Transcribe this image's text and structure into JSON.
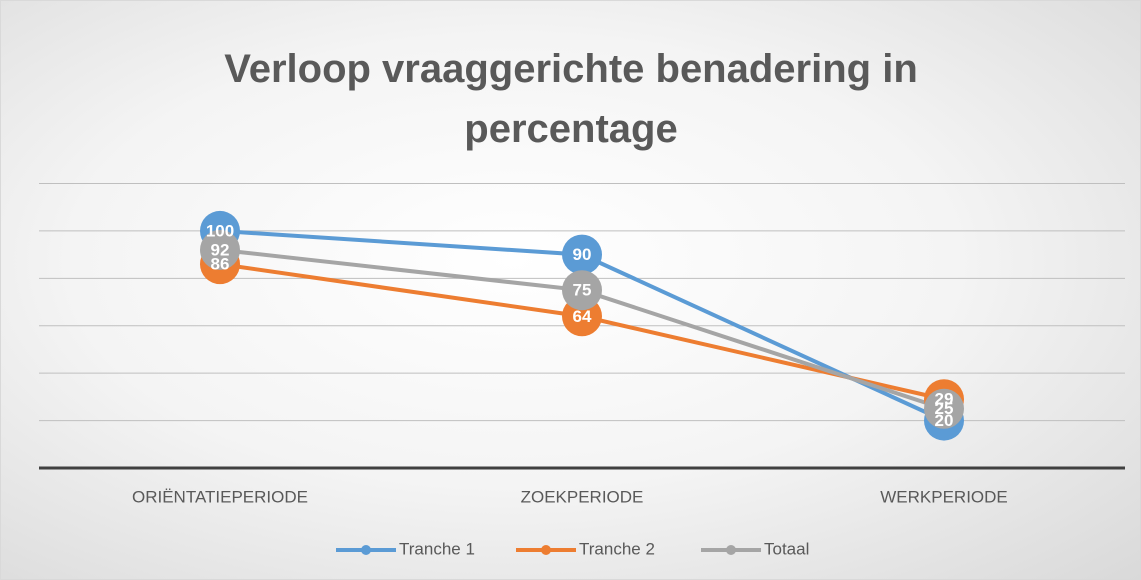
{
  "chart_data": {
    "type": "line",
    "title": "Verloop vraaggerichte benadering in percentage",
    "categories": [
      "ORIËNTATIEPERIODE",
      "ZOEKPERIODE",
      "WERKPERIODE"
    ],
    "series": [
      {
        "name": "Tranche 1",
        "color": "#5b9bd5",
        "values": [
          100,
          90,
          20
        ]
      },
      {
        "name": "Tranche 2",
        "color": "#ed7d31",
        "values": [
          86,
          64,
          29
        ]
      },
      {
        "name": "Totaal",
        "color": "#a5a5a5",
        "values": [
          92,
          75,
          25
        ]
      }
    ],
    "ylim": [
      0,
      120
    ],
    "yticks": [
      0,
      20,
      40,
      60,
      80,
      100,
      120
    ],
    "grid": true,
    "legend": "bottom"
  }
}
